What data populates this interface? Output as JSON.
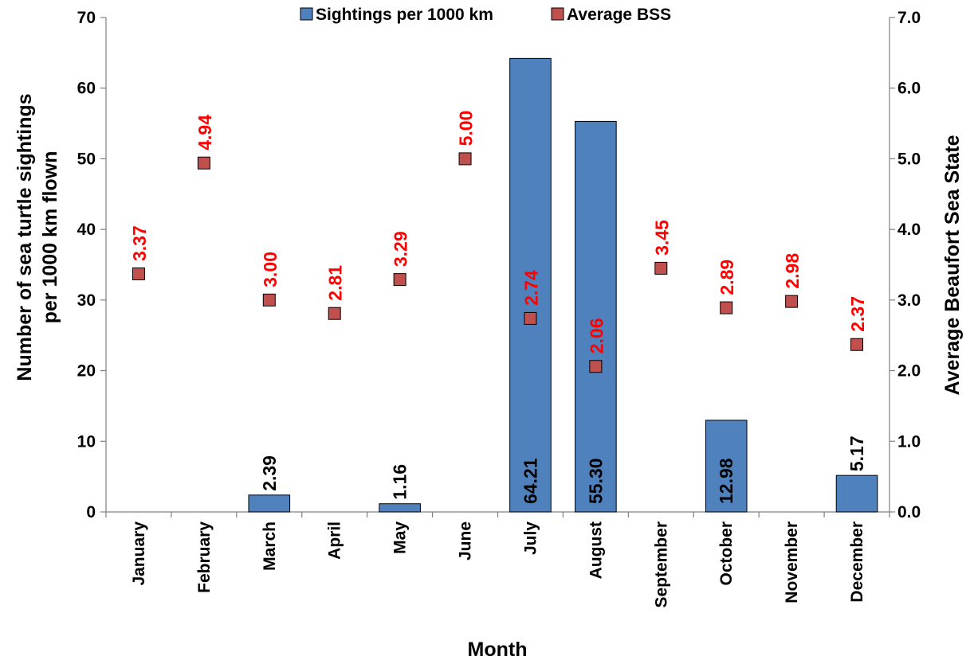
{
  "chart_data": {
    "type": "bar",
    "categories": [
      "January",
      "February",
      "March",
      "April",
      "May",
      "June",
      "July",
      "August",
      "September",
      "October",
      "November",
      "December"
    ],
    "series": [
      {
        "name": "Sightings per 1000 km",
        "type": "bar",
        "axis": "left",
        "color": "#4F81BD",
        "values": [
          0,
          0,
          2.39,
          0,
          1.16,
          0,
          64.21,
          55.3,
          0,
          12.98,
          0,
          5.17
        ],
        "labels": [
          "",
          "",
          "2.39",
          "",
          "1.16",
          "",
          "64.21",
          "55.30",
          "",
          "12.98",
          "",
          "5.17"
        ]
      },
      {
        "name": "Average BSS",
        "type": "scatter",
        "axis": "right",
        "color": "#C0504D",
        "label_color": "#FF0000",
        "values": [
          3.37,
          4.94,
          3.0,
          2.81,
          3.29,
          5.0,
          2.74,
          2.06,
          3.45,
          2.89,
          2.98,
          2.37
        ],
        "labels": [
          "3.37",
          "4.94",
          "3.00",
          "2.81",
          "3.29",
          "5.00",
          "2.74",
          "2.06",
          "3.45",
          "2.89",
          "2.98",
          "2.37"
        ]
      }
    ],
    "xlabel": "Month",
    "ylabel_lines": [
      "Number of sea turtle sightings",
      "per 1000 km flown"
    ],
    "y2label": "Average Beaufort Sea State",
    "ylim": [
      0,
      70
    ],
    "y_ticks": [
      "0",
      "10",
      "20",
      "30",
      "40",
      "50",
      "60",
      "70"
    ],
    "y2lim": [
      0,
      7
    ],
    "y2_ticks": [
      "0.0",
      "1.0",
      "2.0",
      "3.0",
      "4.0",
      "5.0",
      "6.0",
      "7.0"
    ],
    "legend_position": "top",
    "grid": false
  }
}
